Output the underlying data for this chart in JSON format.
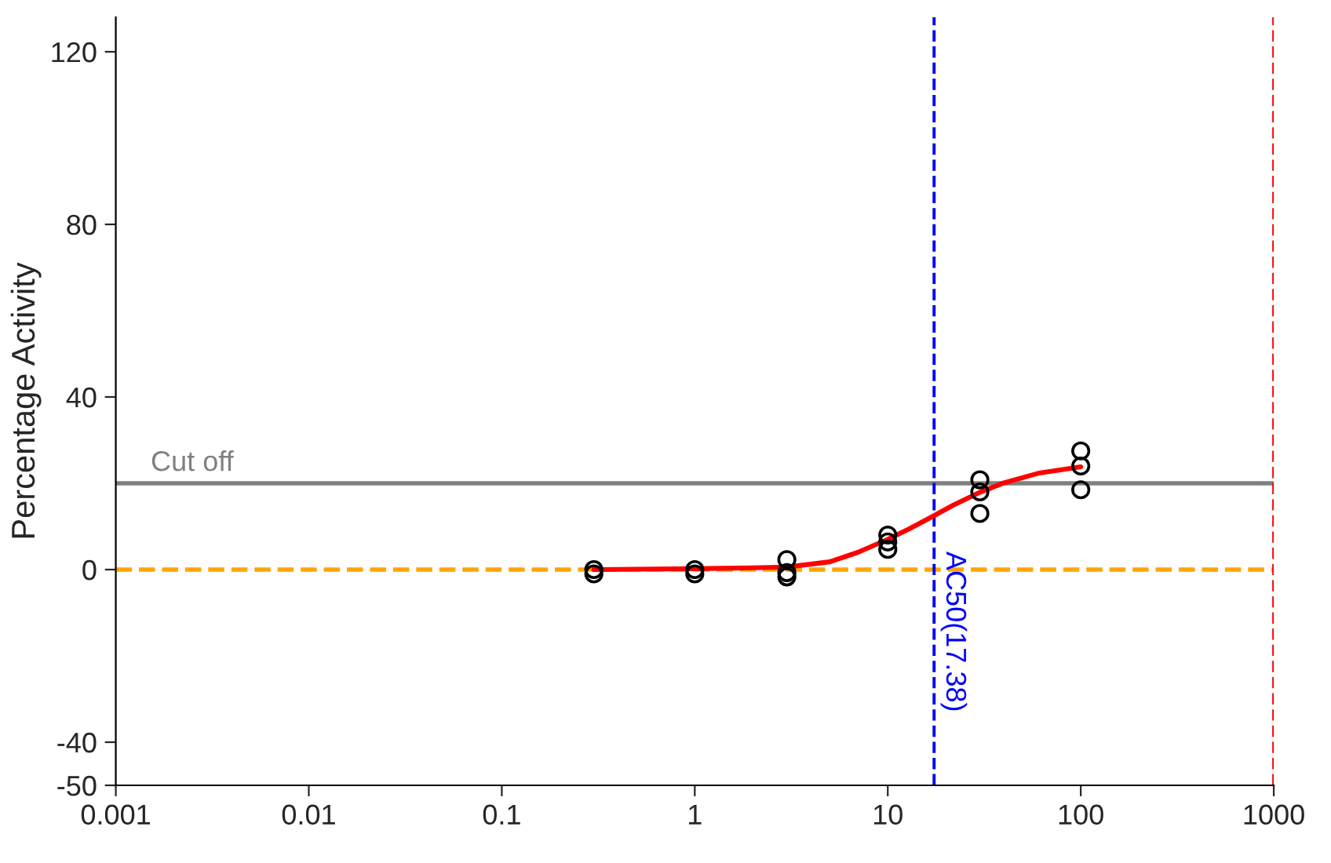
{
  "chart_data": {
    "type": "scatter",
    "ylabel": "Percentage Activity",
    "log": "x",
    "xlim": [
      0.001,
      1000
    ],
    "xticks": [
      0.001,
      0.01,
      0.1,
      1,
      10,
      100,
      1000
    ],
    "ylim": [
      -50,
      128
    ],
    "yticks": [
      -50,
      -40,
      0,
      40,
      80,
      120
    ],
    "grid": false,
    "marker": "circle",
    "series": [
      {
        "color": "#000000",
        "x": [
          0.3,
          0.3,
          1,
          1,
          3,
          3,
          3,
          10,
          10,
          10,
          30,
          30,
          30,
          100,
          100,
          100
        ],
        "values": [
          0,
          -1,
          0,
          -1,
          2.3,
          -0.7,
          -1.7,
          8,
          6.4,
          4.7,
          20.8,
          18,
          13,
          27.5,
          24,
          18.5
        ]
      },
      {
        "type": "line",
        "color": "#ff0000",
        "marker": "none",
        "line_style": "solid",
        "x": [
          0.3,
          0.5,
          1,
          2,
          3,
          5,
          7,
          10,
          13,
          17.38,
          22,
          30,
          40,
          60,
          100
        ],
        "values": [
          0,
          0.1,
          0.2,
          0.4,
          0.6,
          1.8,
          4,
          7,
          9.5,
          12.5,
          15,
          17.9,
          20.1,
          22.3,
          23.8
        ]
      }
    ],
    "ref_lines": [
      {
        "axis": "y",
        "value": 20,
        "label": "Cut off",
        "color": "#808080",
        "line_style": "solid"
      },
      {
        "axis": "y",
        "value": 0,
        "color": "#ffa500",
        "line_style": "dashed"
      },
      {
        "axis": "x",
        "value": 17.38,
        "label": "AC50(17.38)",
        "color": "#0000ff",
        "line_style": "dashed"
      },
      {
        "axis": "x",
        "value": 1000,
        "color": "#ff0000",
        "line_style": "dashed"
      }
    ]
  }
}
